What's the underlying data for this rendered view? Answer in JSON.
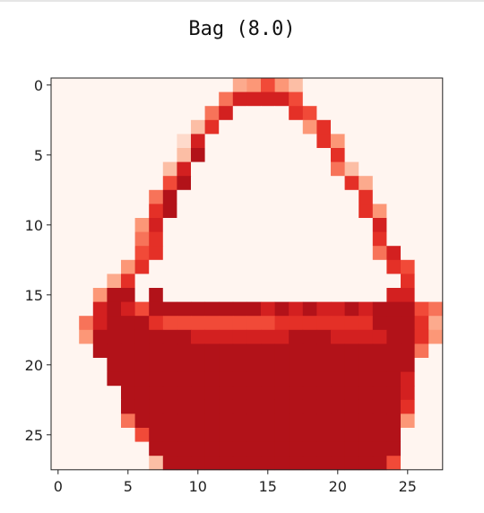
{
  "page": {
    "title": "Bag (8.0)"
  },
  "chart_data": {
    "type": "heatmap",
    "title": "Bag (8.0)",
    "colormap": "Reds",
    "shape": [
      28,
      28
    ],
    "xlim": [
      -0.5,
      27.5
    ],
    "ylim": [
      27.5,
      -0.5
    ],
    "xticks": [
      0,
      5,
      10,
      15,
      20,
      25
    ],
    "yticks": [
      0,
      5,
      10,
      15,
      20,
      25
    ],
    "grid": false,
    "rows": [
      "0000000000000346420000000000",
      "0000000000005888860000000000",
      "0000000000058000076000000000",
      "0000000000270000004700000000",
      "0000000001800000000740000000",
      "0000000002900000000070000000",
      "0000000028000000000052000000",
      "0000000069000000000007300000",
      "0000000590000000000000700000",
      "0000000790000000000000740000",
      "0000004800000000000000080000",
      "0000005700000000000000070000",
      "0000006700000000000000058000",
      "0000047000000000000000007600",
      "0000370000000000000000000700",
      "0004990900000000000000008800",
      "0008986999999998989889899965",
      "0058999766666666777777799973",
      "0049999999888888899988889974",
      "0009999999999999999999999950",
      "0000999999999999999999999900",
      "0000999999999999999999999800",
      "0000099999999999999999999800",
      "0000099999999999999999999700",
      "0000059999999999999999999400",
      "0000006999999999999999999000",
      "0000000999999999999999999000",
      "0000000299999999999999996000"
    ]
  }
}
